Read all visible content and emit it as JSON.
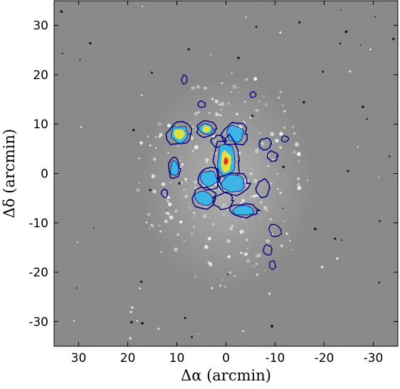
{
  "chart_data": {
    "type": "contour",
    "background": "grayscale sky image (difference map) of a face-on spiral galaxy",
    "xlabel": "Δα (arcmin)",
    "ylabel": "Δδ (arcmin)",
    "xlim": [
      35,
      -35
    ],
    "ylim": [
      -35,
      35
    ],
    "x_reversed": true,
    "x_ticks": [
      30,
      20,
      10,
      0,
      -10,
      -20,
      -30
    ],
    "y_ticks": [
      30,
      20,
      10,
      0,
      -10,
      -20,
      -30
    ],
    "x_tick_labels": [
      "30",
      "20",
      "10",
      "0",
      "-10",
      "-20",
      "-30"
    ],
    "y_tick_labels": [
      "30",
      "20",
      "10",
      "0",
      "-10",
      "-20",
      "-30"
    ],
    "grid": false,
    "legend": "none",
    "contour_colors": [
      "#0a0a80",
      "#3cb4e6",
      "#e0e040",
      "#e63020"
    ],
    "contour_regions": [
      {
        "center": [
          9.5,
          8.0
        ],
        "size": [
          2.6,
          2.4
        ],
        "peak": 3
      },
      {
        "center": [
          4.0,
          9.0
        ],
        "size": [
          2.0,
          1.6
        ],
        "peak": 3
      },
      {
        "center": [
          -1.8,
          8.0
        ],
        "size": [
          2.4,
          2.4
        ],
        "peak": 2
      },
      {
        "center": [
          1.5,
          6.5
        ],
        "size": [
          1.4,
          1.2
        ],
        "peak": 1
      },
      {
        "center": [
          0.0,
          2.5
        ],
        "size": [
          2.6,
          4.8
        ],
        "peak": 4
      },
      {
        "center": [
          10.5,
          1.0
        ],
        "size": [
          1.2,
          2.0
        ],
        "peak": 2
      },
      {
        "center": [
          3.5,
          -1.0
        ],
        "size": [
          2.4,
          2.2
        ],
        "peak": 2
      },
      {
        "center": [
          -1.5,
          -2.0
        ],
        "size": [
          3.2,
          2.4
        ],
        "peak": 2
      },
      {
        "center": [
          4.5,
          -5.0
        ],
        "size": [
          2.6,
          2.0
        ],
        "peak": 2
      },
      {
        "center": [
          0.5,
          -5.5
        ],
        "size": [
          2.0,
          1.6
        ],
        "peak": 1
      },
      {
        "center": [
          -3.5,
          -7.5
        ],
        "size": [
          3.0,
          1.4
        ],
        "peak": 2
      },
      {
        "center": [
          -7.5,
          -3.0
        ],
        "size": [
          1.4,
          1.8
        ],
        "peak": 1
      },
      {
        "center": [
          -8.0,
          6.0
        ],
        "size": [
          1.2,
          1.2
        ],
        "peak": 1
      },
      {
        "center": [
          -9.5,
          3.5
        ],
        "size": [
          1.0,
          1.0
        ],
        "peak": 1
      }
    ],
    "outer_contours": [
      {
        "center": [
          8.5,
          19.0
        ],
        "size": [
          0.6,
          0.8
        ]
      },
      {
        "center": [
          5.0,
          14.0
        ],
        "size": [
          0.8,
          0.6
        ]
      },
      {
        "center": [
          -5.5,
          16.0
        ],
        "size": [
          0.6,
          0.6
        ]
      },
      {
        "center": [
          -10.0,
          -11.5
        ],
        "size": [
          1.2,
          1.2
        ]
      },
      {
        "center": [
          -8.5,
          -15.5
        ],
        "size": [
          0.8,
          1.0
        ]
      },
      {
        "center": [
          -9.5,
          -18.5
        ],
        "size": [
          0.6,
          0.8
        ]
      },
      {
        "center": [
          12.5,
          -4.0
        ],
        "size": [
          0.6,
          0.8
        ]
      },
      {
        "center": [
          -12.0,
          7.0
        ],
        "size": [
          0.8,
          0.6
        ]
      }
    ]
  }
}
